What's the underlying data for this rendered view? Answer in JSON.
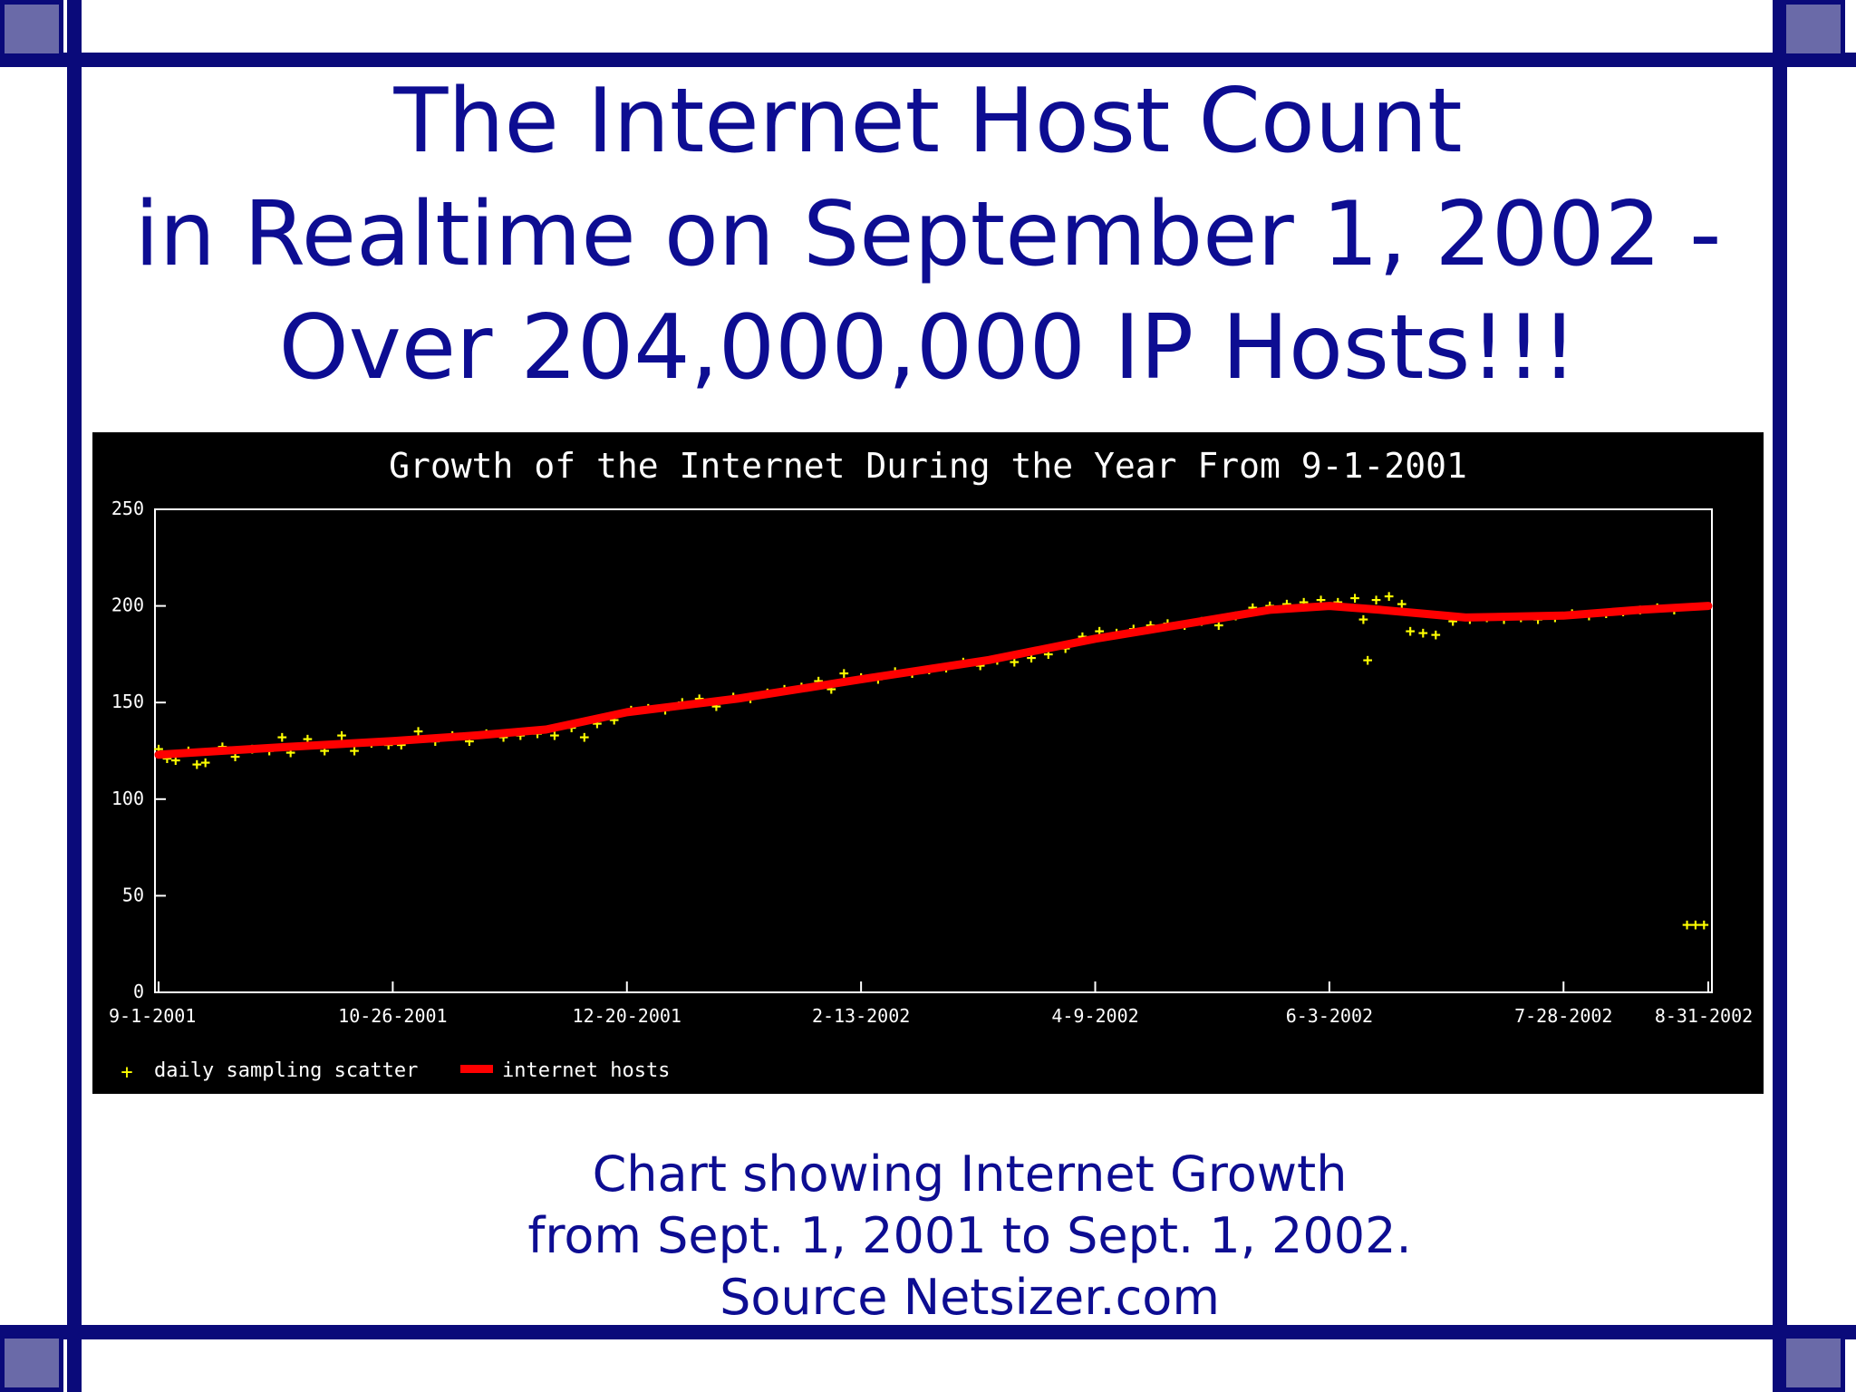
{
  "slide": {
    "title_lines": [
      "The Internet Host Count",
      "in Realtime on September 1, 2002 -",
      "Over 204,000,000 IP Hosts!!!"
    ],
    "caption_lines": [
      "Chart showing Internet Growth",
      "from Sept. 1, 2001 to Sept. 1, 2002.",
      "Source Netsizer.com"
    ],
    "colors": {
      "frame": "#0a0a7a",
      "corner_squares": "#6a6aa8",
      "title_text": "#0d0d92",
      "chart_background": "#000000"
    }
  },
  "chart_data": {
    "type": "line",
    "title": "Growth of the Internet During the Year From 9-1-2001",
    "xlabel": "",
    "ylabel": "",
    "xlim": [
      "9-1-2001",
      "8-31-2002"
    ],
    "ylim": [
      0,
      250
    ],
    "x_ticks": [
      "9-1-2001",
      "10-26-2001",
      "12-20-2001",
      "2-13-2002",
      "4-9-2002",
      "6-3-2002",
      "7-28-2002",
      "8-31-2002"
    ],
    "y_ticks": [
      "0",
      "50",
      "100",
      "150",
      "200",
      "250"
    ],
    "grid": false,
    "legend_position": "bottom-left",
    "series": [
      {
        "name": "internet hosts",
        "style": "line",
        "color": "#ff0000",
        "points": [
          [
            "2001-09-01",
            123
          ],
          [
            "2001-10-01",
            127
          ],
          [
            "2001-10-26",
            130
          ],
          [
            "2001-11-15",
            133
          ],
          [
            "2001-12-01",
            136
          ],
          [
            "2001-12-20",
            145
          ],
          [
            "2002-01-15",
            152
          ],
          [
            "2002-02-13",
            162
          ],
          [
            "2002-03-15",
            172
          ],
          [
            "2002-04-09",
            183
          ],
          [
            "2002-05-01",
            191
          ],
          [
            "2002-05-20",
            198
          ],
          [
            "2002-06-03",
            200
          ],
          [
            "2002-06-15",
            198
          ],
          [
            "2002-06-25",
            196
          ],
          [
            "2002-07-05",
            194
          ],
          [
            "2002-07-28",
            195
          ],
          [
            "2002-08-15",
            198
          ],
          [
            "2002-08-31",
            200
          ]
        ]
      },
      {
        "name": "daily sampling scatter",
        "style": "scatter",
        "color": "#ffff00",
        "points": [
          [
            "2001-09-01",
            126
          ],
          [
            "2001-09-03",
            121
          ],
          [
            "2001-09-05",
            120
          ],
          [
            "2001-09-08",
            125
          ],
          [
            "2001-09-10",
            118
          ],
          [
            "2001-09-12",
            119
          ],
          [
            "2001-09-16",
            127
          ],
          [
            "2001-09-19",
            122
          ],
          [
            "2001-09-23",
            126
          ],
          [
            "2001-09-27",
            125
          ],
          [
            "2001-09-30",
            132
          ],
          [
            "2001-10-02",
            124
          ],
          [
            "2001-10-06",
            131
          ],
          [
            "2001-10-10",
            125
          ],
          [
            "2001-10-14",
            133
          ],
          [
            "2001-10-17",
            125
          ],
          [
            "2001-10-21",
            129
          ],
          [
            "2001-10-25",
            128
          ],
          [
            "2001-10-28",
            128
          ],
          [
            "2001-11-01",
            135
          ],
          [
            "2001-11-05",
            130
          ],
          [
            "2001-11-09",
            133
          ],
          [
            "2001-11-13",
            130
          ],
          [
            "2001-11-17",
            134
          ],
          [
            "2001-11-21",
            132
          ],
          [
            "2001-11-25",
            133
          ],
          [
            "2001-11-29",
            134
          ],
          [
            "2001-12-03",
            133
          ],
          [
            "2001-12-07",
            137
          ],
          [
            "2001-12-10",
            132
          ],
          [
            "2001-12-13",
            139
          ],
          [
            "2001-12-17",
            141
          ],
          [
            "2001-12-21",
            146
          ],
          [
            "2001-12-25",
            147
          ],
          [
            "2001-12-29",
            146
          ],
          [
            "2002-01-02",
            150
          ],
          [
            "2002-01-06",
            152
          ],
          [
            "2002-01-10",
            148
          ],
          [
            "2002-01-14",
            153
          ],
          [
            "2002-01-18",
            152
          ],
          [
            "2002-01-22",
            155
          ],
          [
            "2002-01-26",
            157
          ],
          [
            "2002-01-30",
            158
          ],
          [
            "2002-02-03",
            161
          ],
          [
            "2002-02-06",
            157
          ],
          [
            "2002-02-09",
            165
          ],
          [
            "2002-02-13",
            163
          ],
          [
            "2002-02-17",
            162
          ],
          [
            "2002-02-21",
            166
          ],
          [
            "2002-02-25",
            165
          ],
          [
            "2002-03-01",
            167
          ],
          [
            "2002-03-05",
            168
          ],
          [
            "2002-03-09",
            171
          ],
          [
            "2002-03-13",
            169
          ],
          [
            "2002-03-17",
            172
          ],
          [
            "2002-03-21",
            171
          ],
          [
            "2002-03-25",
            173
          ],
          [
            "2002-03-29",
            175
          ],
          [
            "2002-04-02",
            178
          ],
          [
            "2002-04-06",
            184
          ],
          [
            "2002-04-10",
            187
          ],
          [
            "2002-04-14",
            186
          ],
          [
            "2002-04-18",
            188
          ],
          [
            "2002-04-22",
            190
          ],
          [
            "2002-04-26",
            191
          ],
          [
            "2002-04-30",
            190
          ],
          [
            "2002-05-04",
            192
          ],
          [
            "2002-05-08",
            190
          ],
          [
            "2002-05-12",
            195
          ],
          [
            "2002-05-16",
            199
          ],
          [
            "2002-05-20",
            200
          ],
          [
            "2002-05-24",
            201
          ],
          [
            "2002-05-28",
            202
          ],
          [
            "2002-06-01",
            203
          ],
          [
            "2002-06-05",
            202
          ],
          [
            "2002-06-09",
            204
          ],
          [
            "2002-06-11",
            193
          ],
          [
            "2002-06-12",
            172
          ],
          [
            "2002-06-14",
            203
          ],
          [
            "2002-06-17",
            205
          ],
          [
            "2002-06-20",
            201
          ],
          [
            "2002-06-22",
            187
          ],
          [
            "2002-06-25",
            186
          ],
          [
            "2002-06-28",
            185
          ],
          [
            "2002-07-02",
            192
          ],
          [
            "2002-07-06",
            193
          ],
          [
            "2002-07-10",
            194
          ],
          [
            "2002-07-14",
            193
          ],
          [
            "2002-07-18",
            194
          ],
          [
            "2002-07-22",
            193
          ],
          [
            "2002-07-26",
            194
          ],
          [
            "2002-07-30",
            196
          ],
          [
            "2002-08-03",
            195
          ],
          [
            "2002-08-07",
            196
          ],
          [
            "2002-08-11",
            197
          ],
          [
            "2002-08-15",
            198
          ],
          [
            "2002-08-19",
            199
          ],
          [
            "2002-08-23",
            198
          ],
          [
            "2002-08-26",
            35
          ],
          [
            "2002-08-28",
            35
          ],
          [
            "2002-08-30",
            35
          ]
        ]
      }
    ]
  }
}
